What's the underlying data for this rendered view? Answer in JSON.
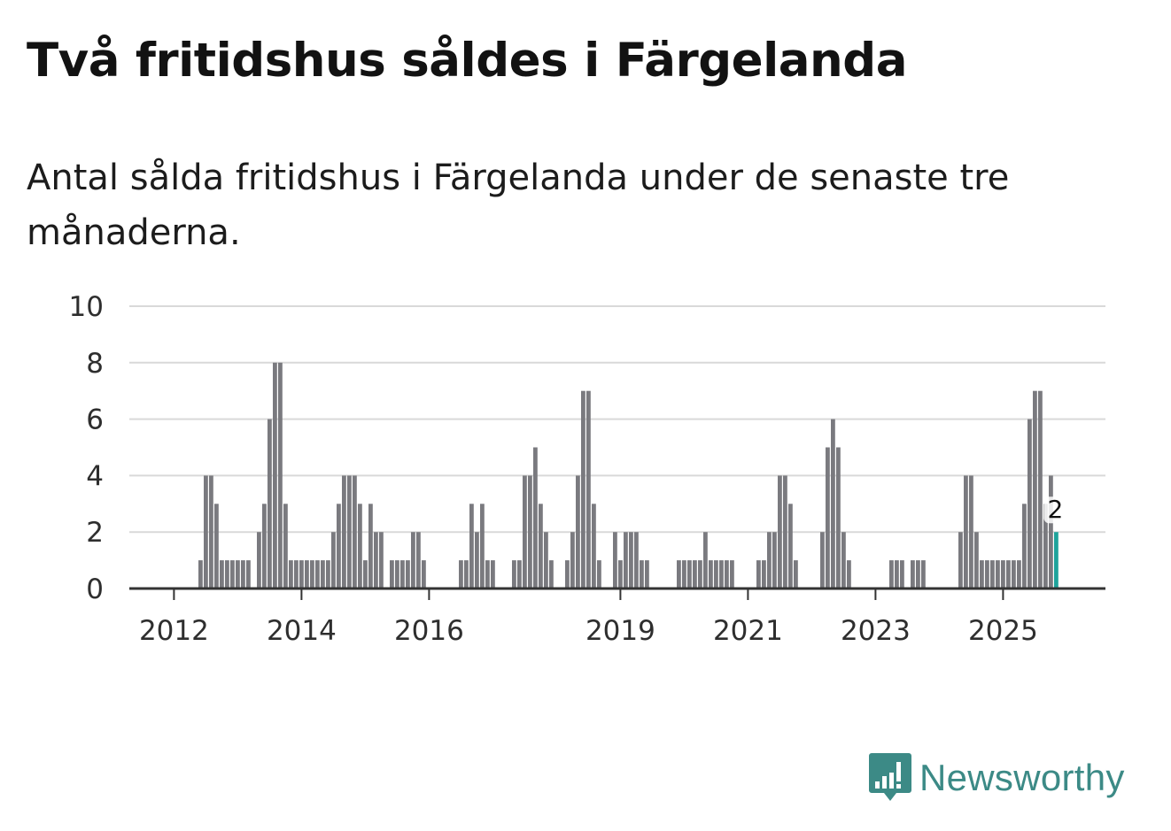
{
  "header": {
    "title": "Två fritidshus såldes i Färgelanda",
    "subtitle": "Antal sålda fritidshus i Färgelanda under de senaste tre månaderna."
  },
  "brand": {
    "name": "Newsworthy"
  },
  "colors": {
    "bar": "#7a7a7f",
    "highlight": "#1fa39b",
    "grid": "#d9d9d9",
    "axis": "#333333",
    "brand": "#3c8a86"
  },
  "chart_data": {
    "type": "bar",
    "title": "Två fritidshus såldes i Färgelanda",
    "subtitle": "Antal sålda fritidshus i Färgelanda under de senaste tre månaderna.",
    "xlabel": "",
    "ylabel": "",
    "ylim": [
      0,
      10
    ],
    "yticks": [
      0,
      2,
      4,
      6,
      8,
      10
    ],
    "x_start": "2011-06",
    "x_step": "month (rolling three-month value)",
    "xticks": [
      {
        "label": "2012",
        "index": 7
      },
      {
        "label": "2014",
        "index": 31
      },
      {
        "label": "2016",
        "index": 55
      },
      {
        "label": "2019",
        "index": 91
      },
      {
        "label": "2021",
        "index": 115
      },
      {
        "label": "2023",
        "index": 139
      },
      {
        "label": "2025",
        "index": 163
      }
    ],
    "values": [
      0,
      0,
      0,
      0,
      0,
      0,
      0,
      0,
      0,
      0,
      0,
      0,
      1,
      4,
      4,
      3,
      1,
      1,
      1,
      1,
      1,
      1,
      0,
      2,
      3,
      6,
      8,
      8,
      3,
      1,
      1,
      1,
      1,
      1,
      1,
      1,
      1,
      2,
      3,
      4,
      4,
      4,
      3,
      1,
      3,
      2,
      2,
      0,
      1,
      1,
      1,
      1,
      2,
      2,
      1,
      0,
      0,
      0,
      0,
      0,
      0,
      1,
      1,
      3,
      2,
      3,
      1,
      1,
      0,
      0,
      0,
      1,
      1,
      4,
      4,
      5,
      3,
      2,
      1,
      0,
      0,
      1,
      2,
      4,
      7,
      7,
      3,
      1,
      0,
      0,
      2,
      1,
      2,
      2,
      2,
      1,
      1,
      0,
      0,
      0,
      0,
      0,
      1,
      1,
      1,
      1,
      1,
      2,
      1,
      1,
      1,
      1,
      1,
      0,
      0,
      0,
      0,
      1,
      1,
      2,
      2,
      4,
      4,
      3,
      1,
      0,
      0,
      0,
      0,
      2,
      5,
      6,
      5,
      2,
      1,
      0,
      0,
      0,
      0,
      0,
      0,
      0,
      1,
      1,
      1,
      0,
      1,
      1,
      1,
      0,
      0,
      0,
      0,
      0,
      0,
      2,
      4,
      4,
      2,
      1,
      1,
      1,
      1,
      1,
      1,
      1,
      1,
      3,
      6,
      7,
      7,
      3,
      4,
      2
    ],
    "highlight_last": true,
    "data_labels": [
      {
        "index": 173,
        "text": "2"
      }
    ]
  }
}
